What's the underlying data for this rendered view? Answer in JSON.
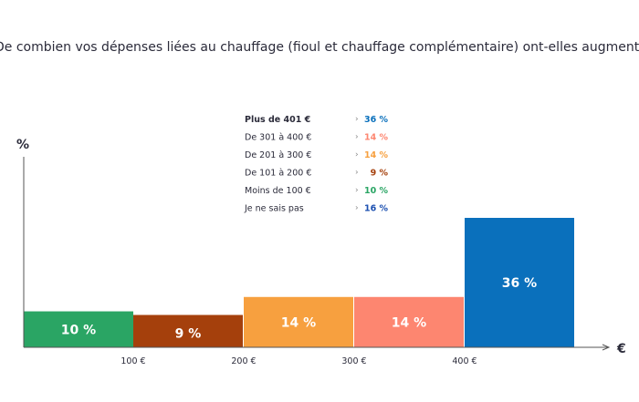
{
  "title": "De combien vos dépenses liées au chauffage (fioul et chauffage complémentaire) ont-elles augmenté ?",
  "chart_data": {
    "type": "bar",
    "ylabel": "%",
    "xlabel": "€",
    "x_ticks": [
      "100 €",
      "200 €",
      "300 €",
      "400 €"
    ],
    "bars": [
      {
        "range": "0-100",
        "value": 10,
        "label": "10 %",
        "color": "#2aa564"
      },
      {
        "range": "100-200",
        "value": 9,
        "label": "9 %",
        "color": "#a5400c"
      },
      {
        "range": "200-300",
        "value": 14,
        "label": "14 %",
        "color": "#f7a03f"
      },
      {
        "range": "300-400",
        "value": 14,
        "label": "14 %",
        "color": "#fd8670"
      },
      {
        "range": "400+",
        "value": 36,
        "label": "36 %",
        "color": "#0a70bc"
      }
    ],
    "legend": [
      {
        "label": "Plus de 401 €",
        "value": "36 %",
        "color": "#0a70bc",
        "bold": true
      },
      {
        "label": "De 301 à 400 €",
        "value": "14 %",
        "color": "#fd8670",
        "bold": false
      },
      {
        "label": "De 201 à 300 €",
        "value": "14 %",
        "color": "#f7a03f",
        "bold": false
      },
      {
        "label": "De 101 à 200 €",
        "value": "9 %",
        "color": "#a5400c",
        "bold": false
      },
      {
        "label": "Moins de 100 €",
        "value": "10 %",
        "color": "#2aa564",
        "bold": false
      },
      {
        "label": "Je ne sais pas",
        "value": "16 %",
        "color": "#1b4fb0",
        "bold": false
      }
    ]
  }
}
